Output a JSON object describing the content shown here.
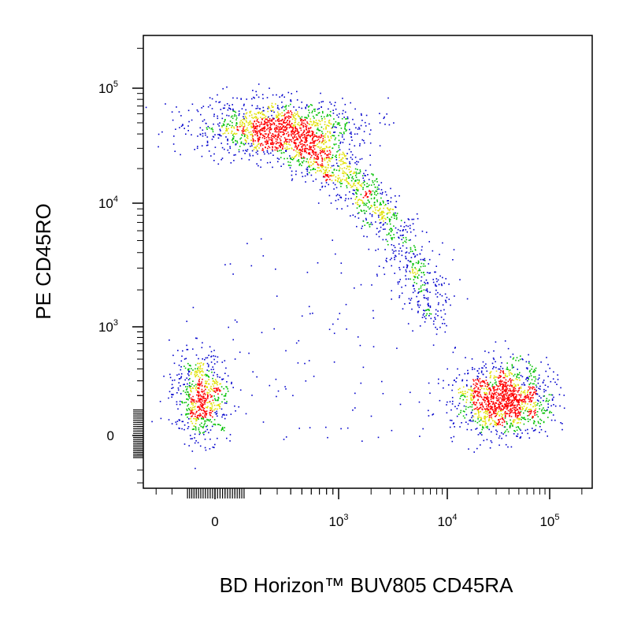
{
  "chart_data": {
    "type": "scatter",
    "subtype": "flow-cytometry-density-dot-plot",
    "xlabel": "BD Horizon™ BUV805 CD45RA",
    "ylabel": "PE CD45RO",
    "x_scale": "biexponential",
    "y_scale": "biexponential",
    "x_ticks": [
      {
        "value": 0,
        "base": "0",
        "exp": ""
      },
      {
        "value": 1000,
        "base": "10",
        "exp": "3"
      },
      {
        "value": 10000,
        "base": "10",
        "exp": "4"
      },
      {
        "value": 100000,
        "base": "10",
        "exp": "5"
      }
    ],
    "y_ticks": [
      {
        "value": 0,
        "base": "0",
        "exp": ""
      },
      {
        "value": 1000,
        "base": "10",
        "exp": "3"
      },
      {
        "value": 10000,
        "base": "10",
        "exp": "4"
      },
      {
        "value": 100000,
        "base": "10",
        "exp": "5"
      }
    ],
    "grid": false,
    "legend": "none",
    "density_colors": [
      "#0000cc",
      "#00c000",
      "#e0e000",
      "#ff0000"
    ],
    "populations": [
      {
        "description": "double-negative cluster",
        "x_center": -50,
        "y_center": 200,
        "relative_size": 0.1
      },
      {
        "description": "CD45RO+ CD45RA- cluster",
        "x_center": 200,
        "y_center": 45000,
        "relative_size": 0.3
      },
      {
        "description": "transitional arc",
        "x_from": 400,
        "x_to": 8000,
        "y_from": 30000,
        "y_to": 2000,
        "relative_size": 0.25
      },
      {
        "description": "CD45RA+ CD45RO- cluster",
        "x_center": 35000,
        "y_center": 180,
        "relative_size": 0.3
      }
    ]
  }
}
